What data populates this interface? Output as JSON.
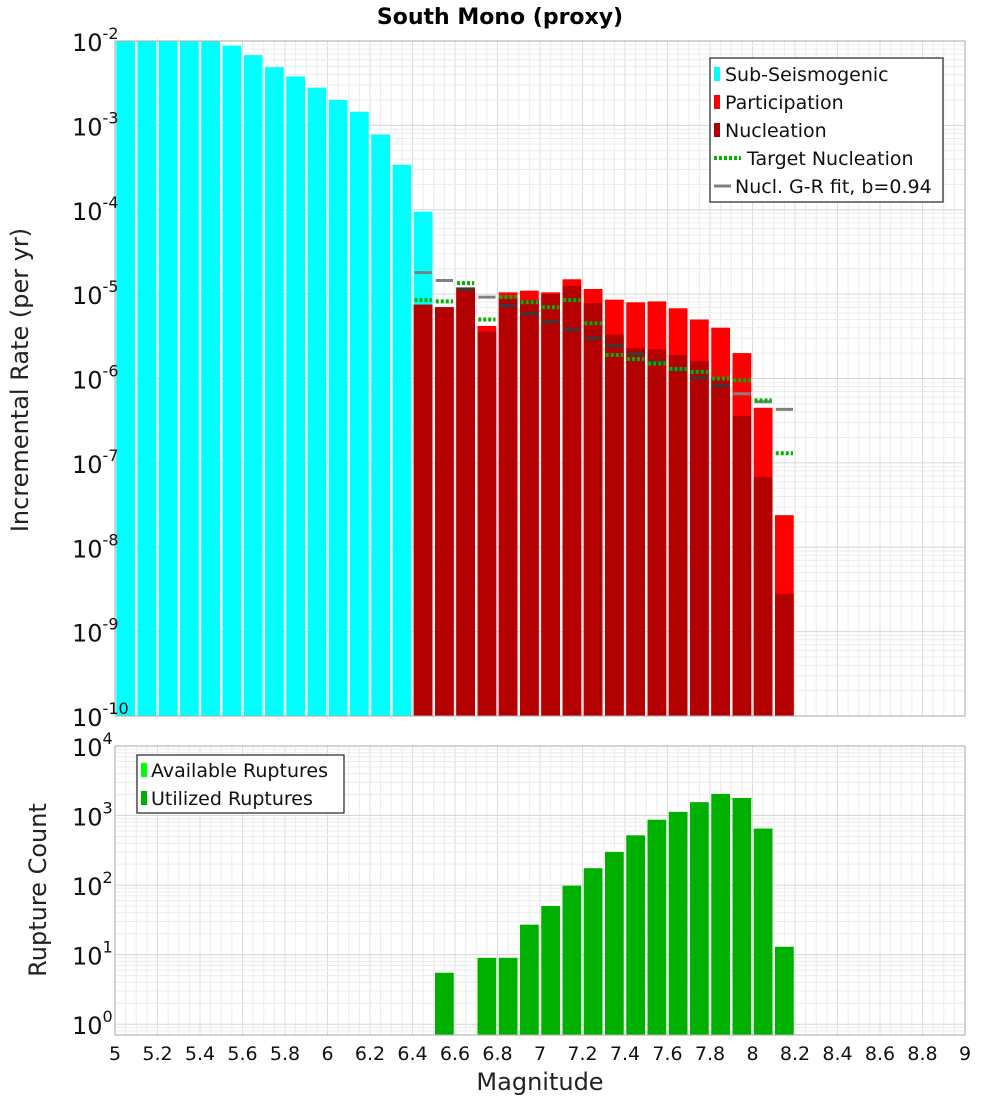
{
  "title": "South Mono (proxy)",
  "colors": {
    "sub_seismogenic": "#00ffff",
    "participation": "#ff0000",
    "nucleation": "#b30000",
    "target_nucleation": "#00b400",
    "gr_fit": "#808080",
    "gr_fit_dark": "#3a3a3a",
    "available_ruptures": "#00ff00",
    "utilized_ruptures": "#00b000"
  },
  "chart_data": [
    {
      "type": "bar",
      "ylabel": "Incremental Rate (per yr)",
      "xlim": [
        5,
        9
      ],
      "ylim": [
        1e-10,
        0.01
      ],
      "yscale": "log",
      "y_tick_labels": [
        {
          "base": "10",
          "exp": "-10"
        },
        {
          "base": "10",
          "exp": "-9"
        },
        {
          "base": "10",
          "exp": "-8"
        },
        {
          "base": "10",
          "exp": "-7"
        },
        {
          "base": "10",
          "exp": "-6"
        },
        {
          "base": "10",
          "exp": "-5"
        },
        {
          "base": "10",
          "exp": "-4"
        },
        {
          "base": "10",
          "exp": "-3"
        },
        {
          "base": "10",
          "exp": "-2"
        }
      ],
      "grid": true,
      "legend_position": "top-right",
      "legend": [
        {
          "label": "Sub-Seismogenic",
          "style": "bar",
          "color": "#00ffff"
        },
        {
          "label": "Participation",
          "style": "bar",
          "color": "#ff0000"
        },
        {
          "label": "Nucleation",
          "style": "bar",
          "color": "#b30000"
        },
        {
          "label": "Target Nucleation",
          "style": "dotted",
          "color": "#00b400"
        },
        {
          "label": "Nucl. G-R fit, b=0.94",
          "style": "solid",
          "color": "#808080"
        }
      ],
      "sub_seismogenic": {
        "x": [
          5.05,
          5.15,
          5.25,
          5.35,
          5.45,
          5.55,
          5.65,
          5.75,
          5.85,
          5.95,
          6.05,
          6.15,
          6.25,
          6.35,
          6.45,
          6.55
        ],
        "values": [
          0.01,
          0.01,
          0.01,
          0.01,
          0.01,
          0.0088,
          0.0068,
          0.0049,
          0.0038,
          0.0028,
          0.002,
          0.00145,
          0.00078,
          0.00034,
          9.5e-05,
          0
        ]
      },
      "x": [
        6.45,
        6.55,
        6.65,
        6.75,
        6.85,
        6.95,
        7.05,
        7.15,
        7.25,
        7.35,
        7.45,
        7.55,
        7.65,
        7.75,
        7.85,
        7.95,
        8.05,
        8.15
      ],
      "participation": [
        7.5e-06,
        7e-06,
        1.2e-05,
        4.2e-06,
        1.05e-05,
        1.1e-05,
        1.05e-05,
        1.5e-05,
        1.15e-05,
        8.6e-06,
        8e-06,
        8.2e-06,
        6.8e-06,
        5e-06,
        4e-06,
        2e-06,
        4.5e-07,
        2.4e-08
      ],
      "nucleation": [
        7.5e-06,
        7e-06,
        1.2e-05,
        3.6e-06,
        9e-06,
        8.5e-06,
        1e-05,
        1.25e-05,
        7.8e-06,
        3.3e-06,
        2.3e-06,
        2.2e-06,
        1.9e-06,
        1.6e-06,
        1e-06,
        3.6e-07,
        6.8e-08,
        2.8e-09
      ],
      "target_nucleation": [
        8.5e-06,
        8.2e-06,
        1.35e-05,
        5e-06,
        9.2e-06,
        8e-06,
        7e-06,
        8.5e-06,
        4.5e-06,
        1.9e-06,
        1.7e-06,
        1.5e-06,
        1.3e-06,
        1.2e-06,
        1e-06,
        9.5e-07,
        5.5e-07,
        1.3e-07
      ],
      "gr_fit": [
        1.8e-05,
        1.45e-05,
        1.15e-05,
        9.2e-06,
        7.3e-06,
        5.9e-06,
        4.7e-06,
        3.8e-06,
        3e-06,
        2.45e-06,
        1.95e-06,
        1.58e-06,
        1.26e-06,
        1.02e-06,
        8.2e-07,
        6.6e-07,
        5.3e-07,
        4.3e-07
      ]
    },
    {
      "type": "bar",
      "ylabel": "Rupture Count",
      "xlabel": "Magnitude",
      "xlim": [
        5,
        9
      ],
      "ylim": [
        0.7,
        10000
      ],
      "yscale": "log",
      "y_tick_labels": [
        {
          "base": "10",
          "exp": "0"
        },
        {
          "base": "10",
          "exp": "1"
        },
        {
          "base": "10",
          "exp": "2"
        },
        {
          "base": "10",
          "exp": "3"
        },
        {
          "base": "10",
          "exp": "4"
        }
      ],
      "x_tick_labels": [
        "5",
        "5.2",
        "5.4",
        "5.6",
        "5.8",
        "6",
        "6.2",
        "6.4",
        "6.6",
        "6.8",
        "7",
        "7.2",
        "7.4",
        "7.6",
        "7.8",
        "8",
        "8.2",
        "8.4",
        "8.6",
        "8.8",
        "9"
      ],
      "grid": true,
      "legend_position": "top-left",
      "legend": [
        {
          "label": "Available Ruptures",
          "style": "bar",
          "color": "#00ff00"
        },
        {
          "label": "Utilized Ruptures",
          "style": "bar",
          "color": "#00b000"
        }
      ],
      "x": [
        6.55,
        6.75,
        6.85,
        6.95,
        7.05,
        7.15,
        7.25,
        7.35,
        7.45,
        7.55,
        7.65,
        7.75,
        7.85,
        7.95,
        8.05,
        8.15
      ],
      "utilized_ruptures": [
        5.5,
        9,
        9,
        27,
        50,
        98,
        175,
        300,
        520,
        870,
        1130,
        1560,
        2050,
        1790,
        650,
        13
      ]
    }
  ]
}
